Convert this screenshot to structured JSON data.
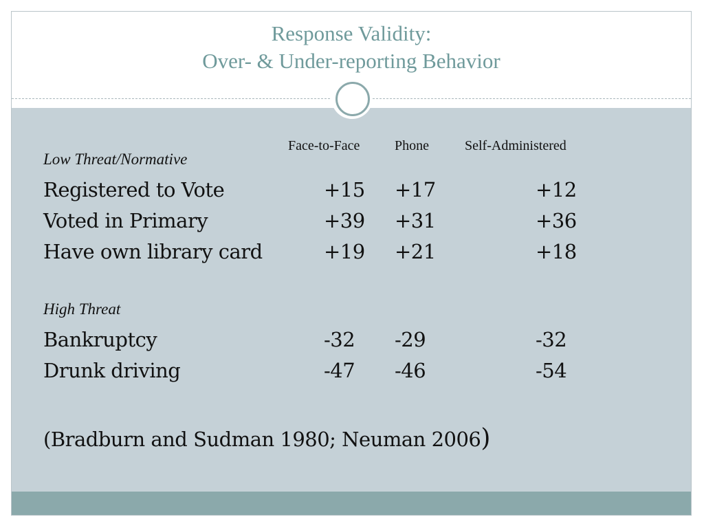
{
  "slide": {
    "title_line1": "Response Validity:",
    "title_line2": "Over- & Under-reporting Behavior",
    "colors": {
      "title": "#6f9a9b",
      "content_bg": "#c5d1d7",
      "footer_bar": "#8ba9ab",
      "accent_circle": "#8ba9ab"
    }
  },
  "table": {
    "headers": {
      "face_to_face": "Face-to-Face",
      "phone": "Phone",
      "self_administered": "Self-Administered"
    },
    "sections": [
      {
        "label": "Low Threat/Normative",
        "rows": [
          {
            "label": "Registered to Vote",
            "face_to_face": "+15",
            "phone": "+17",
            "self_administered": "+12"
          },
          {
            "label": "Voted in Primary",
            "face_to_face": "+39",
            "phone": "+31",
            "self_administered": "+36"
          },
          {
            "label": "Have own library card",
            "face_to_face": "+19",
            "phone": "+21",
            "self_administered": "+18"
          }
        ]
      },
      {
        "label": "High Threat",
        "rows": [
          {
            "label": "Bankruptcy",
            "face_to_face": "-32",
            "phone": "-29",
            "self_administered": "-32"
          },
          {
            "label": "Drunk driving",
            "face_to_face": "-47",
            "phone": "-46",
            "self_administered": "-54"
          }
        ]
      }
    ]
  },
  "citation": {
    "text": "(Bradburn and Sudman 1980; Neuman 2006",
    "closing_paren": ")"
  }
}
